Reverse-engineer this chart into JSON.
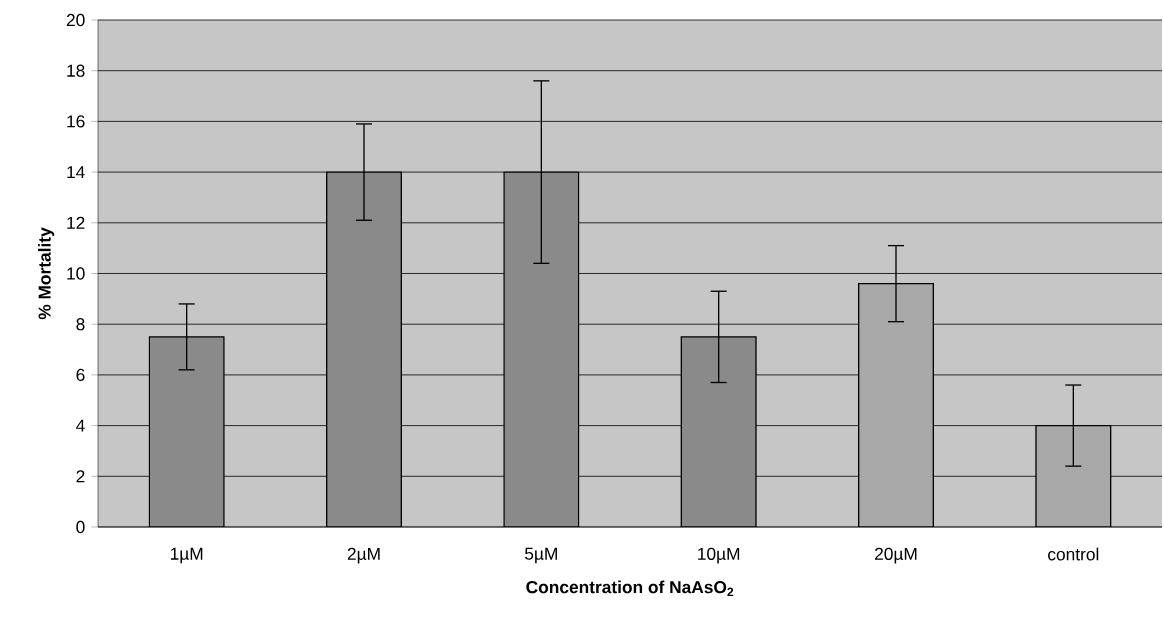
{
  "chart_data": {
    "type": "bar",
    "xlabel": "Concentration of NaAsO$_{2}$",
    "ylabel": "% Mortality",
    "categories": [
      "1µM",
      "2µM",
      "5µM",
      "10µM",
      "20µM",
      "control"
    ],
    "values": [
      7.5,
      14,
      14,
      7.5,
      9.6,
      4
    ],
    "errors": [
      1.3,
      1.9,
      3.6,
      1.8,
      1.5,
      1.6
    ],
    "colors": [
      "#8a8a8a",
      "#8a8a8a",
      "#8a8a8a",
      "#8a8a8a",
      "#a8a8a8",
      "#a8a8a8"
    ],
    "ylim": [
      0,
      20
    ],
    "yticks": [
      0,
      2,
      4,
      6,
      8,
      10,
      12,
      14,
      16,
      18,
      20
    ],
    "grid": "y"
  }
}
